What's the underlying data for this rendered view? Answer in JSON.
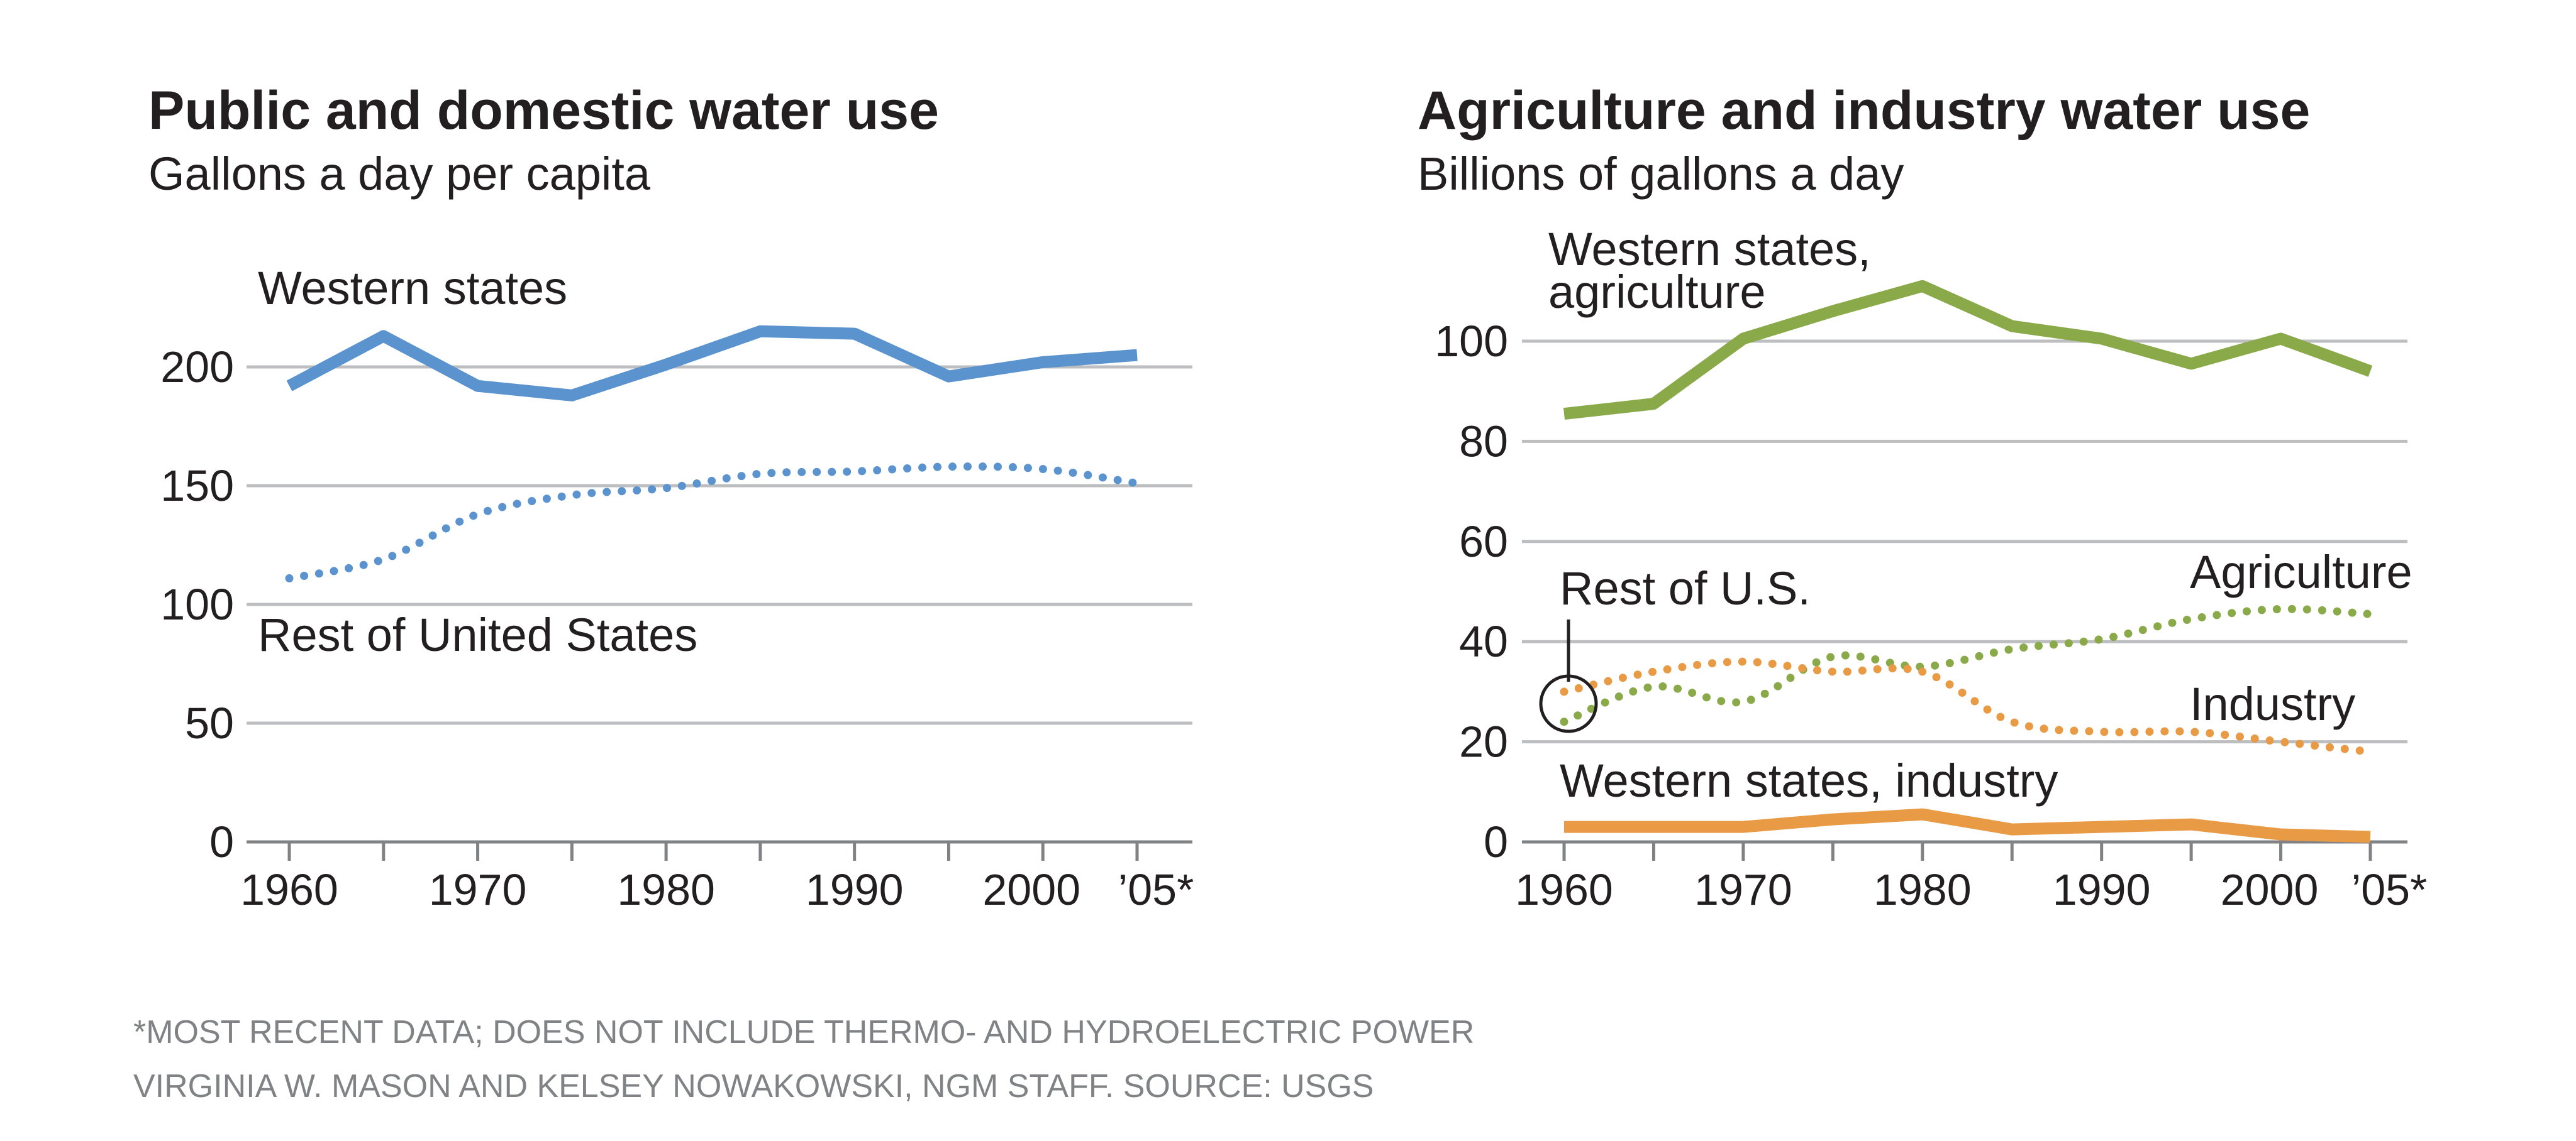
{
  "chart_data": [
    {
      "type": "line",
      "title": "Public and domestic water use",
      "subtitle": "Gallons a day per capita",
      "x_ticks": [
        "1960",
        "1970",
        "1980",
        "1990",
        "2000",
        "’05*"
      ],
      "y_ticks": [
        "0",
        "50",
        "100",
        "150",
        "200"
      ],
      "ylim": [
        0,
        200
      ],
      "grid": true,
      "series": [
        {
          "name": "Western states",
          "color": "#5b93cf",
          "style": "solid",
          "x": [
            1960,
            1965,
            1970,
            1975,
            1980,
            1985,
            1990,
            1995,
            2000,
            2005
          ],
          "values": [
            192,
            213,
            192,
            188,
            201,
            215,
            214,
            196,
            202,
            205
          ]
        },
        {
          "name": "Rest of United States",
          "color": "#5b93cf",
          "style": "dotted",
          "x": [
            1960,
            1965,
            1970,
            1975,
            1980,
            1985,
            1990,
            1995,
            2000,
            2005
          ],
          "values": [
            111,
            119,
            138,
            146,
            149,
            155,
            156,
            158,
            157,
            151
          ]
        }
      ]
    },
    {
      "type": "line",
      "title": "Agriculture and industry water use",
      "subtitle": "Billions of gallons a day",
      "x_ticks": [
        "1960",
        "1970",
        "1980",
        "1990",
        "2000",
        "’05*"
      ],
      "y_ticks": [
        "0",
        "20",
        "40",
        "60",
        "80",
        "100"
      ],
      "ylim": [
        0,
        100
      ],
      "grid": true,
      "series": [
        {
          "name": "Western states, agriculture",
          "color": "#8aaa4a",
          "style": "solid",
          "x": [
            1960,
            1965,
            1970,
            1975,
            1980,
            1985,
            1990,
            1995,
            2000,
            2005
          ],
          "values": [
            85.5,
            87.5,
            100.5,
            106,
            111,
            103,
            100.5,
            95.5,
            100.5,
            94
          ]
        },
        {
          "name": "Agriculture",
          "color": "#8aaa4a",
          "style": "dotted",
          "x": [
            1960,
            1965,
            1970,
            1975,
            1980,
            1985,
            1990,
            1995,
            2000,
            2005
          ],
          "values": [
            24,
            31,
            28,
            37,
            35,
            38.5,
            40.5,
            44.5,
            46.5,
            45.5
          ]
        },
        {
          "name": "Industry",
          "color": "#e89a45",
          "style": "dotted",
          "x": [
            1960,
            1965,
            1970,
            1975,
            1980,
            1985,
            1990,
            1995,
            2000,
            2005
          ],
          "values": [
            30,
            34,
            36,
            34,
            34,
            24,
            22,
            22,
            20,
            18
          ]
        },
        {
          "name": "Western states, industry",
          "color": "#e89a45",
          "style": "solid",
          "x": [
            1960,
            1965,
            1970,
            1975,
            1980,
            1985,
            1990,
            1995,
            2000,
            2005
          ],
          "values": [
            3,
            3,
            3,
            4.5,
            5.5,
            2.5,
            3,
            3.5,
            1.5,
            1
          ]
        }
      ],
      "annotations": [
        "Rest of U.S."
      ]
    }
  ],
  "labels": {
    "left_western": "Western states",
    "left_rest": "Rest of United States",
    "right_western_ag_line1": "Western states,",
    "right_western_ag_line2": "agriculture",
    "right_rest": "Rest of U.S.",
    "right_agriculture": "Agriculture",
    "right_industry": "Industry",
    "right_western_industry": "Western states, industry"
  },
  "footnote": "*MOST RECENT DATA; DOES NOT INCLUDE THERMO- AND HYDROELECTRIC POWER",
  "credit": "VIRGINIA W. MASON AND KELSEY NOWAKOWSKI, NGM STAFF. SOURCE: USGS"
}
